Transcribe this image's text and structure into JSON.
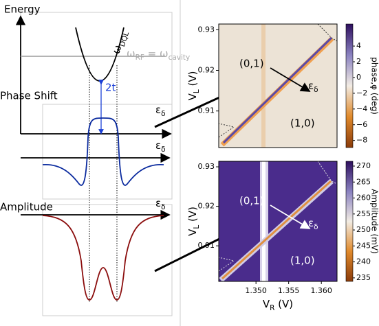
{
  "schematic": {
    "energy": {
      "title": "Energy",
      "epsilon": [
        "ε",
        "δ"
      ],
      "omega_dql": [
        "ω",
        "DQL"
      ],
      "omega_rf": [
        "ω",
        "RF",
        " = ω",
        "cavity"
      ],
      "gap": "2t"
    },
    "phase": {
      "title": "Phase Shift",
      "epsilon": [
        "ε",
        "δ"
      ]
    },
    "amplitude": {
      "title": "Amplitude",
      "epsilon": [
        "ε",
        "δ"
      ]
    }
  },
  "chart_data": [
    {
      "type": "heatmap",
      "xlim": [
        1.3443,
        1.3624
      ],
      "ylim": [
        0.901,
        0.9314
      ],
      "yticks": [
        0.91,
        0.92,
        0.93
      ],
      "ylabel": [
        "V",
        "L",
        " (V)"
      ],
      "region_left": "(0,1)",
      "region_right": "(1,0)",
      "detuning": [
        "ε",
        "δ"
      ],
      "colorbar": {
        "label": "phase,φ (deg)",
        "lim": [
          -8.9,
          6.8
        ],
        "ticks": [
          {
            "value": -8,
            "label": "−8"
          },
          {
            "value": -6,
            "label": "−6"
          },
          {
            "value": -4,
            "label": "−4"
          },
          {
            "value": -2,
            "label": "−2"
          },
          0,
          2,
          4
        ],
        "colors": [
          "#8a3b0a",
          "#e08a2c",
          "#f2ece4",
          "#8a82c0",
          "#2e0f5e"
        ]
      }
    },
    {
      "type": "heatmap",
      "xlim": [
        1.3443,
        1.3624
      ],
      "ylim": [
        0.901,
        0.9314
      ],
      "yticks": [
        0.91,
        0.92,
        0.93
      ],
      "xticks": [
        {
          "value": 1.35,
          "label": "1.350"
        },
        {
          "value": 1.355,
          "label": "1.355"
        },
        {
          "value": 1.36,
          "label": "1.360"
        }
      ],
      "xlabel": [
        "V",
        "R",
        " (V)"
      ],
      "ylabel": [
        "V",
        "L",
        " (V)"
      ],
      "region_left": "(0,1)",
      "region_right": "(1,0)",
      "detuning": [
        "ε",
        "δ"
      ],
      "colorbar": {
        "label": "Amplitude (mV)",
        "lim": [
          233.9,
          271.5
        ],
        "ticks": [
          235,
          240,
          245,
          250,
          255,
          260,
          265,
          270
        ],
        "colors": [
          "#8a3b0a",
          "#e08a2c",
          "#f2ece4",
          "#8a82c0",
          "#2e0f5e"
        ]
      }
    }
  ]
}
